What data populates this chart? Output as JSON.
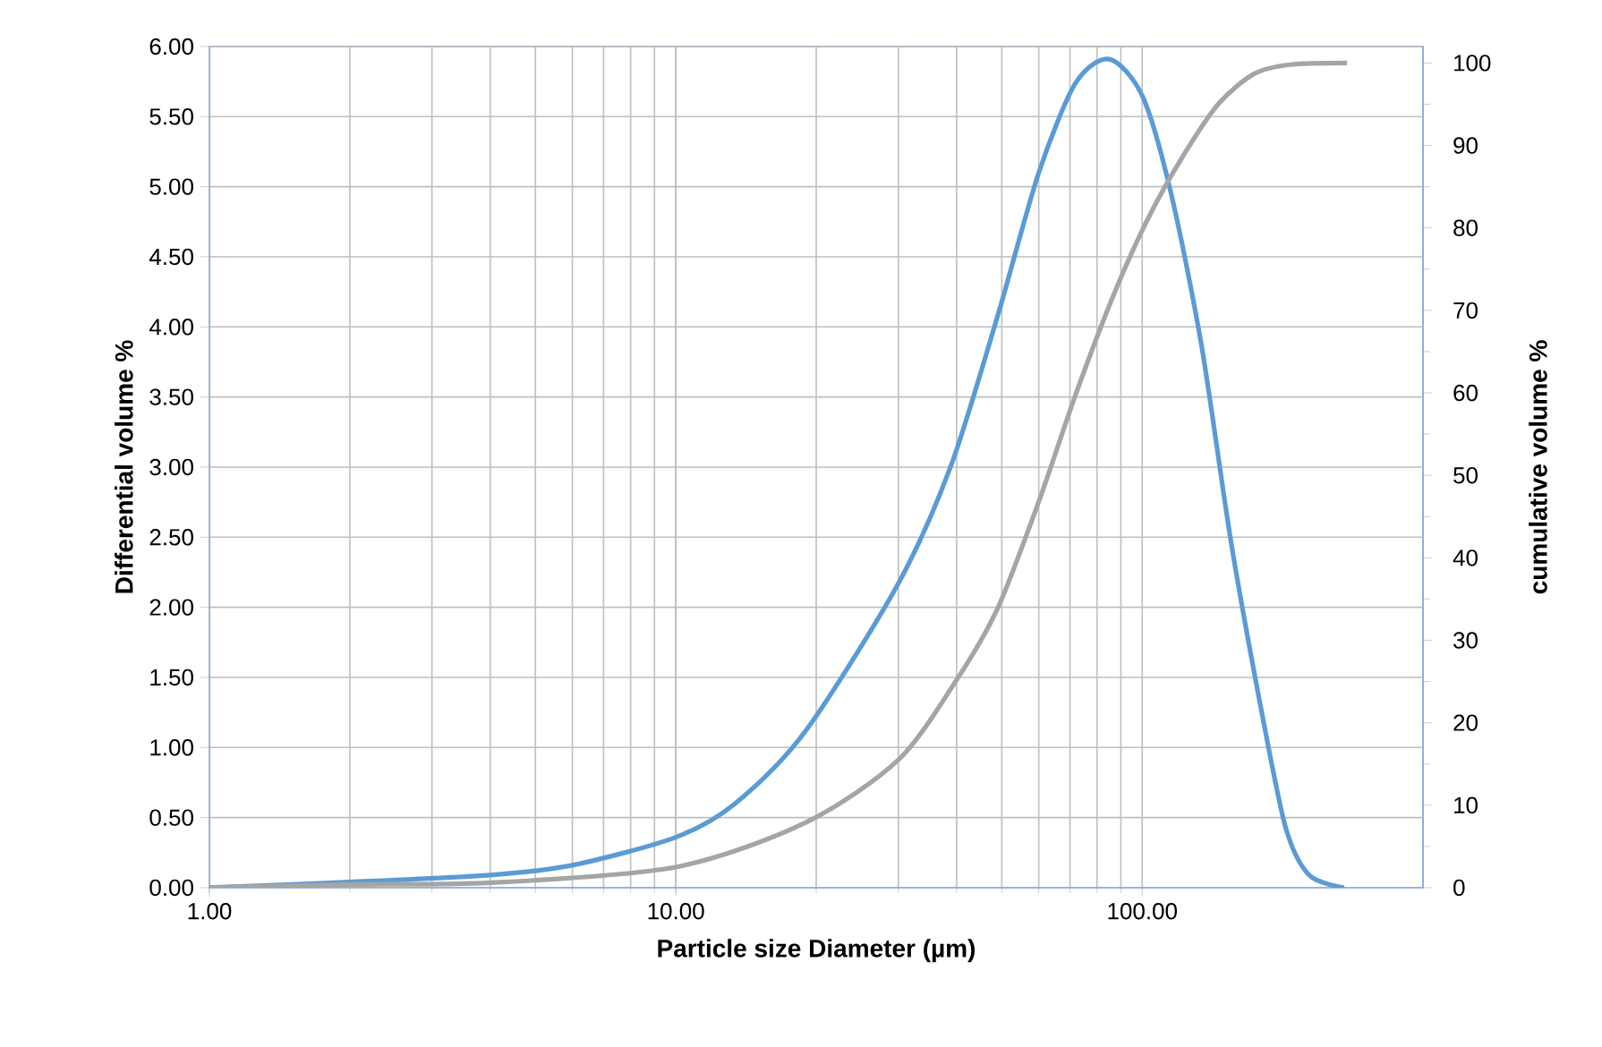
{
  "chart_data": {
    "type": "line",
    "xlabel": "Particle size Diameter (µm)",
    "ylabel": "Differential volume %",
    "y2label": "cumulative volume %",
    "log": "x",
    "grid": true,
    "marker": "none",
    "line_style": "solid",
    "xlim": [
      1,
      400
    ],
    "xticks": [
      {
        "value": 1,
        "label": "1.00"
      },
      {
        "value": 10,
        "label": "10.00"
      },
      {
        "value": 100,
        "label": "100.00"
      }
    ],
    "ylim": [
      0,
      6
    ],
    "yticks": [
      {
        "value": 0,
        "label": "0.00"
      },
      {
        "value": 0.5,
        "label": "0.50"
      },
      {
        "value": 1,
        "label": "1.00"
      },
      {
        "value": 1.5,
        "label": "1.50"
      },
      {
        "value": 2,
        "label": "2.00"
      },
      {
        "value": 2.5,
        "label": "2.50"
      },
      {
        "value": 3,
        "label": "3.00"
      },
      {
        "value": 3.5,
        "label": "3.50"
      },
      {
        "value": 4,
        "label": "4.00"
      },
      {
        "value": 4.5,
        "label": "4.50"
      },
      {
        "value": 5,
        "label": "5.00"
      },
      {
        "value": 5.5,
        "label": "5.50"
      },
      {
        "value": 6,
        "label": "6.00"
      }
    ],
    "y2lim": [
      0,
      102
    ],
    "y2ticks": [
      0,
      10,
      20,
      30,
      40,
      50,
      60,
      70,
      80,
      90,
      100
    ],
    "series": [
      {
        "color": "#5b9bd5",
        "x": [
          1,
          2,
          4,
          6,
          10,
          13.4,
          19,
          30,
          39,
          49,
          60,
          72,
          85,
          100,
          115,
          134,
          155,
          180,
          203,
          228,
          271
        ],
        "values": [
          0,
          0.04,
          0.09,
          0.16,
          0.36,
          0.6,
          1.12,
          2.17,
          3.02,
          4.08,
          5.1,
          5.74,
          5.91,
          5.65,
          4.97,
          3.87,
          2.47,
          1.27,
          0.43,
          0.09,
          0
        ]
      },
      {
        "color": "#a5a5a5",
        "axis": "y2",
        "x": [
          1,
          2,
          4,
          10,
          19,
          30,
          40,
          49,
          60,
          72,
          86,
          102,
          122,
          146,
          174,
          208,
          275
        ],
        "values": [
          0,
          0.4,
          0.6,
          2.5,
          7.9,
          15.5,
          25.2,
          33.9,
          46.8,
          59.8,
          71.3,
          80.7,
          88.6,
          95.1,
          98.7,
          99.8,
          100
        ]
      }
    ]
  }
}
